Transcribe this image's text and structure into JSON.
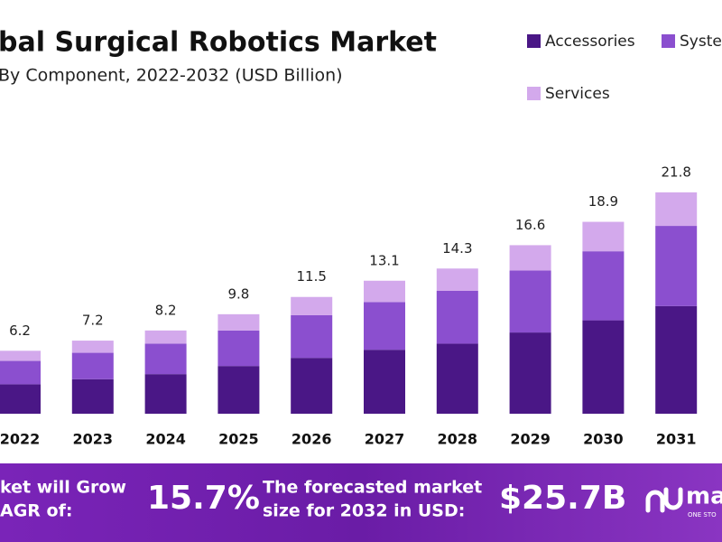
{
  "chart_data": {
    "type": "stacked-bar",
    "title": "bal Surgical Robotics Market",
    "subtitle": "By Component, 2022-2032 (USD Billion)",
    "categories": [
      "2022",
      "2023",
      "2024",
      "2025",
      "2026",
      "2027",
      "2028",
      "2029",
      "2030",
      "2031"
    ],
    "series": [
      {
        "name": "Accessories",
        "color": "#4a1786",
        "values": [
          2.9,
          3.4,
          3.9,
          4.7,
          5.5,
          6.3,
          6.9,
          8.0,
          9.2,
          10.6
        ]
      },
      {
        "name": "Syste",
        "color": "#8b4fcf",
        "values": [
          2.3,
          2.6,
          3.0,
          3.5,
          4.2,
          4.7,
          5.2,
          6.1,
          6.8,
          7.9
        ]
      },
      {
        "name": "Services",
        "color": "#d3a9ec",
        "values": [
          1.0,
          1.2,
          1.3,
          1.6,
          1.8,
          2.1,
          2.2,
          2.5,
          2.9,
          3.3
        ]
      }
    ],
    "totals": [
      6.2,
      7.2,
      8.2,
      9.8,
      11.5,
      13.1,
      14.3,
      16.6,
      18.9,
      21.8
    ]
  },
  "banner": {
    "cagr_line1": "ket will Grow",
    "cagr_line2": "AGR of:",
    "cagr": "15.7%",
    "forecast_line1": "The forecasted market",
    "forecast_line2": "size for 2032 in USD:",
    "forecast": "$25.7B",
    "logo": "ma",
    "logo_tagline": "ONE STO"
  }
}
